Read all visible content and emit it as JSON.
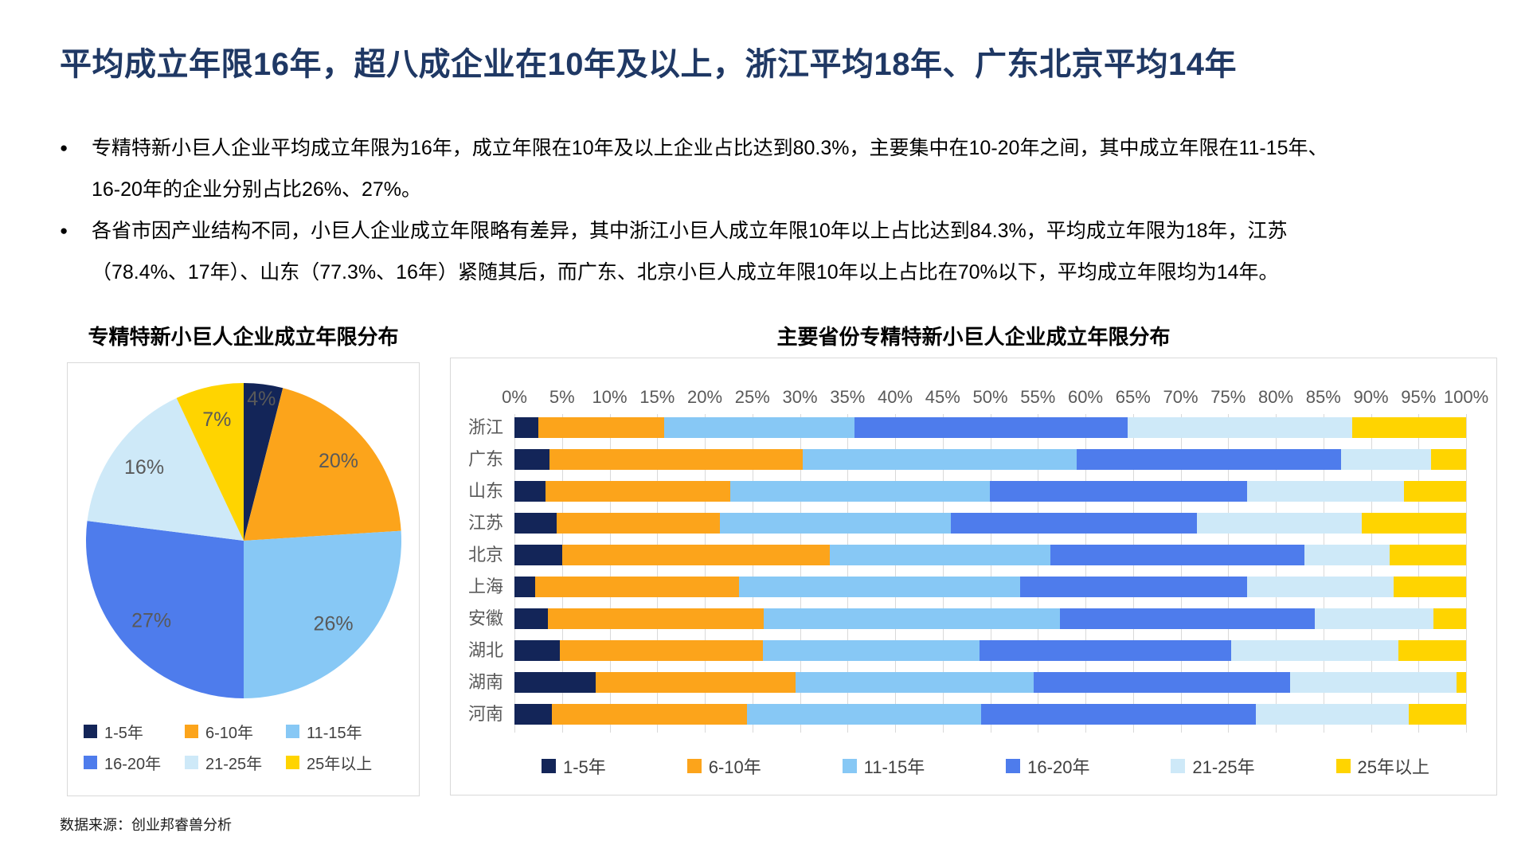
{
  "title": "平均成立年限16年，超八成企业在10年及以上，浙江平均18年、广东北京平均14年",
  "bullet_char": "●",
  "bullets": [
    {
      "lines": [
        "专精特新小巨人企业平均成立年限为16年，成立年限在10年及以上企业占比达到80.3%，主要集中在10-20年之间，其中成立年限在11-15年、",
        "16-20年的企业分别占比26%、27%。"
      ]
    },
    {
      "lines": [
        "各省市因产业结构不同，小巨人企业成立年限略有差异，其中浙江小巨人成立年限10年以上占比达到84.3%，平均成立年限为18年，江苏",
        "（78.4%、17年）、山东（77.3%、16年）紧随其后，而广东、北京小巨人成立年限10年以上占比在70%以下，平均成立年限均为14年。"
      ]
    }
  ],
  "footer": "数据来源：创业邦睿兽分析",
  "colors": {
    "title_navy": "#1F3864",
    "series_navy": "#132558",
    "series_orange": "#FCA41B",
    "series_sky": "#87C8F5",
    "series_royal": "#4E7CEC",
    "series_pale": "#CEE9F8",
    "series_yellow": "#FFD400",
    "grid": "#D9D9D9",
    "axis_text": "#595959"
  },
  "chart_data": [
    {
      "type": "pie",
      "title": "专精特新小巨人企业成立年限分布",
      "labels": [
        "1-5年",
        "6-10年",
        "11-15年",
        "16-20年",
        "21-25年",
        "25年以上"
      ],
      "values": [
        4,
        20,
        26,
        27,
        16,
        7
      ],
      "value_labels": [
        "4%",
        "20%",
        "26%",
        "27%",
        "16%",
        "7%"
      ],
      "colors": [
        "#132558",
        "#FCA41B",
        "#87C8F5",
        "#4E7CEC",
        "#CEE9F8",
        "#FFD400"
      ],
      "start_angle_deg": 0,
      "direction": "clockwise",
      "legend_position": "bottom"
    },
    {
      "type": "bar",
      "orientation": "horizontal",
      "stacked": true,
      "stacked_total": 100,
      "title": "主要省份专精特新小巨人企业成立年限分布",
      "categories": [
        "浙江",
        "广东",
        "山东",
        "江苏",
        "北京",
        "上海",
        "安徽",
        "湖北",
        "湖南",
        "河南"
      ],
      "series": [
        {
          "name": "1-5年",
          "color": "#132558",
          "values": [
            2.5,
            3.7,
            3.3,
            4.4,
            5.0,
            2.2,
            3.5,
            4.8,
            8.5,
            3.9
          ]
        },
        {
          "name": "6-10年",
          "color": "#FCA41B",
          "values": [
            13.2,
            26.6,
            19.4,
            17.2,
            28.1,
            21.4,
            22.7,
            21.3,
            21.0,
            20.5
          ]
        },
        {
          "name": "11-15年",
          "color": "#87C8F5",
          "values": [
            20.0,
            28.8,
            27.3,
            24.3,
            23.2,
            29.5,
            31.1,
            22.8,
            25.1,
            24.6
          ]
        },
        {
          "name": "16-20年",
          "color": "#4E7CEC",
          "values": [
            28.7,
            27.8,
            27.0,
            25.8,
            26.7,
            23.9,
            26.8,
            26.4,
            26.9,
            28.9
          ]
        },
        {
          "name": "21-25年",
          "color": "#CEE9F8",
          "values": [
            23.6,
            9.4,
            16.5,
            17.3,
            9.0,
            15.4,
            12.5,
            17.6,
            17.5,
            16.1
          ]
        },
        {
          "name": "25年以上",
          "color": "#FFD400",
          "values": [
            12.0,
            3.7,
            6.5,
            11.0,
            8.0,
            7.6,
            3.4,
            7.1,
            1.0,
            6.0
          ]
        }
      ],
      "x_axis": {
        "min": 0,
        "max": 100,
        "tick_step": 5,
        "unit": "%",
        "grid": true
      },
      "legend_position": "bottom"
    }
  ]
}
